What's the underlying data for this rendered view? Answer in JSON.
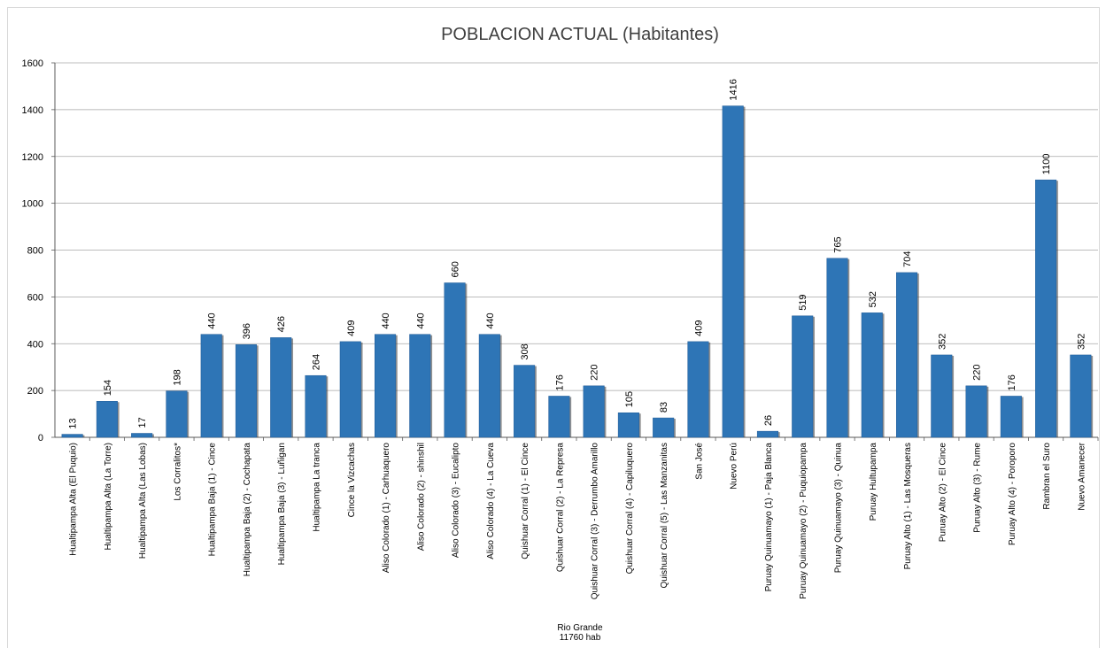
{
  "chart_data": {
    "type": "bar",
    "title": "POBLACION  ACTUAL (Habitantes)",
    "xlabel": "",
    "ylabel": "",
    "ylim": [
      0,
      1600
    ],
    "yticks": [
      0,
      200,
      400,
      600,
      800,
      1000,
      1200,
      1400,
      1600
    ],
    "grid": true,
    "legend": "none",
    "bar_color": "#2e75b6",
    "categories": [
      "Hualtipampa Alta (El Puquio)",
      "Hualtipampa Alta (La Torre)",
      "Hualtipampa Alta (Las Lobas)",
      "Los Corralitos*",
      "Hualtipampa Baja (1) - Cince",
      "Hualtipampa Baja (2) - Cochapata",
      "Hualtipampa Baja (3) - Luñigan",
      "Hualtipampa La tranca",
      "Cince la Vizcachas",
      "Aliso Colorado (1) - Carhuaquero",
      "Aliso Colorado (2) - shinshil",
      "Aliso Colorado (3) - Eucalipto",
      "Aliso Colorado (4) - La Cueva",
      "Quishuar Corral (1) - El Cince",
      "Quishuar Corral (2) - La Represa",
      "Quishuar Corral (3) - Derrumbo Amarillo",
      "Quishuar Corral (4) - Capiluquero",
      "Quishuar Corral (5) - Las Manzanitas",
      "San José",
      "Nuevo Perú",
      "Puruay Quinuamayo (1) - Paja Blanca",
      "Puruay Quinuamayo (2) - Puquiopampa",
      "Puruay Quinuamayo (3) - Quinua",
      "Puruay Hultupampa",
      "Puruay Alto (1) - Las Mosqueras",
      "Puruay Alto (2) - El Cince",
      "Puruay Alto (3) - Rume",
      "Puruay Alto (4) - Poroporo",
      "Rambran el Suro",
      "Nuevo Amanecer"
    ],
    "values": [
      13,
      154,
      17,
      198,
      440,
      396,
      426,
      264,
      409,
      440,
      440,
      660,
      440,
      308,
      176,
      220,
      105,
      83,
      409,
      1416,
      26,
      519,
      765,
      532,
      704,
      352,
      220,
      176,
      1100,
      352
    ]
  },
  "footer": {
    "line1": "Rio Grande",
    "line2": "11760 hab"
  }
}
